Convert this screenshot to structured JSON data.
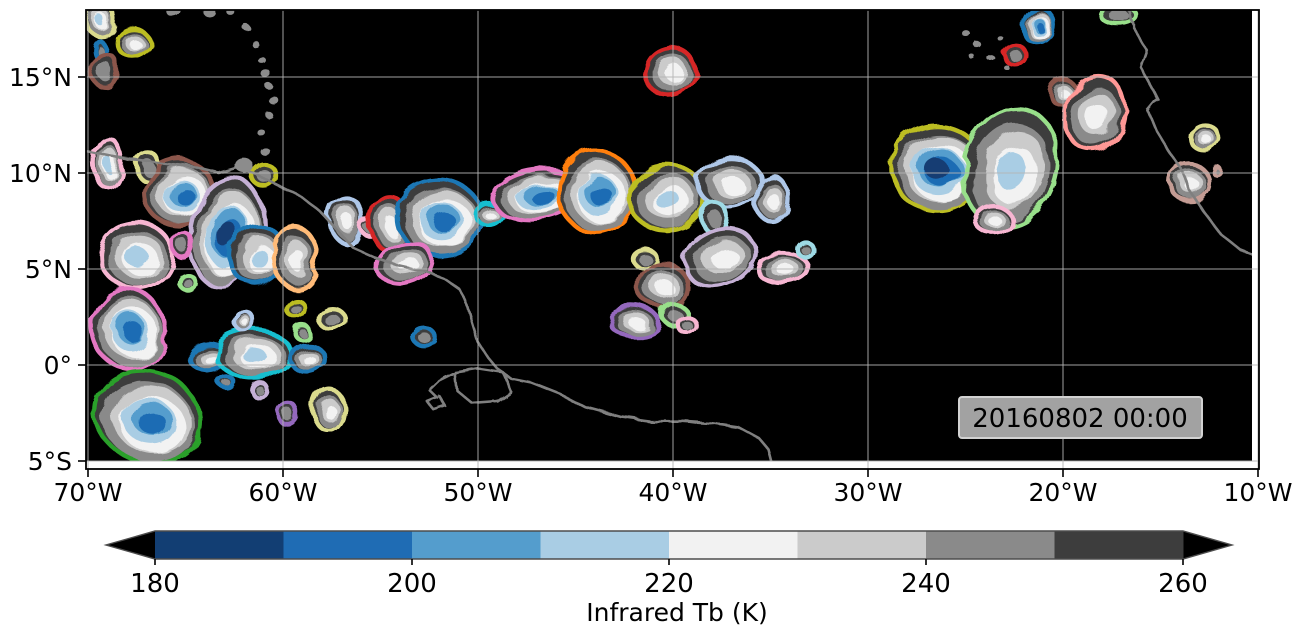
{
  "figure": {
    "timestamp": "20160802 00:00",
    "plot_bg_color": "#000000",
    "gridline_color": "#b4b4b4",
    "coastline_color": "#7f7f7f",
    "frame_color": "#000000",
    "x_axis": {
      "tick_labels": [
        "70°W",
        "60°W",
        "50°W",
        "40°W",
        "30°W",
        "20°W",
        "10°W"
      ],
      "tick_lons": [
        -70,
        -60,
        -50,
        -40,
        -30,
        -20,
        -10
      ]
    },
    "y_axis": {
      "tick_labels": [
        "15°N",
        "10°N",
        "5°N",
        "0°",
        "5°S"
      ],
      "tick_lats": [
        15,
        10,
        5,
        0,
        -5
      ]
    },
    "xlim": [
      -70.1,
      -9.9
    ],
    "ylim": [
      -5.2,
      18.5
    ]
  },
  "colorbar": {
    "label": "Infrared Tb (K)",
    "tick_labels": [
      "180",
      "200",
      "220",
      "240",
      "260"
    ],
    "tick_values": [
      180,
      200,
      220,
      240,
      260
    ],
    "levels": [
      180,
      190,
      200,
      210,
      220,
      230,
      240,
      250,
      260
    ],
    "segment_colors": [
      "#123e73",
      "#1f6cb4",
      "#549dcd",
      "#a9cde4",
      "#f2f2f2",
      "#cbcbcb",
      "#8a8a8a",
      "#3d3d3d"
    ],
    "extend_arrow_color": "#000000",
    "border_color": "#4d4d4d"
  },
  "chart_data": {
    "type": "filled-contour-map",
    "title": "",
    "field": "Infrared brightness temperature (K); black background = warm (>260 K), blues = coldest cloud tops (<220 K)",
    "timestamp": "20160802 00:00",
    "lon_range": [
      -70,
      -10
    ],
    "lat_range": [
      -5,
      18.5
    ],
    "grid": true,
    "fill_levels_desc": "rings from cluster edge inward: 250-260K dark gray, 240-250 gray, 230-240 light gray, 220-230 white, 210-220 pale blue, 200-210 mid blue, 190-200 blue, 180-190 navy",
    "fill_ring_colors": [
      "#3d3d3d",
      "#8a8a8a",
      "#cbcbcb",
      "#f2f2f2",
      "#a9cde4",
      "#549dcd",
      "#1f6cb4",
      "#123e73"
    ],
    "tier_ring_counts": {
      "1": 2,
      "2": 4,
      "3": 5,
      "4": 7,
      "5": 8
    },
    "clusters_fields": [
      "lon",
      "lat",
      "rx_deg",
      "ry_deg",
      "rot_deg",
      "tier_coldness",
      "outline_color"
    ],
    "clusters": [
      [
        -69.3,
        17.9,
        0.72,
        0.83,
        0,
        3,
        "#dbdb8d"
      ],
      [
        -67.7,
        16.8,
        0.82,
        0.73,
        0,
        2,
        "#bcbd22"
      ],
      [
        -69.4,
        16.4,
        0.26,
        0.47,
        0,
        1,
        "#1f77b4"
      ],
      [
        -69.1,
        15.3,
        0.67,
        0.89,
        0,
        1,
        "#8c564b"
      ],
      [
        -68.9,
        10.4,
        0.72,
        1.3,
        0,
        3,
        "#f7b6d2"
      ],
      [
        -66.9,
        10.3,
        0.62,
        0.73,
        0,
        1,
        "#dbdb8d"
      ],
      [
        -65.2,
        8.9,
        1.74,
        1.67,
        -20,
        4,
        "#8c564b"
      ],
      [
        -62.8,
        6.7,
        1.85,
        2.86,
        10,
        5,
        "#c5b0d5"
      ],
      [
        -60.9,
        9.8,
        0.6,
        0.6,
        0,
        1,
        "#bcbd22"
      ],
      [
        -67.4,
        5.6,
        1.85,
        1.7,
        0,
        3,
        "#f7b6d2"
      ],
      [
        -65.1,
        6.2,
        0.5,
        0.67,
        0,
        1,
        "#e377c2"
      ],
      [
        -61.2,
        5.6,
        1.43,
        1.56,
        0,
        3,
        "#1f77b4"
      ],
      [
        -59.3,
        5.5,
        1.1,
        1.56,
        0,
        2,
        "#ffbb78"
      ],
      [
        -64.9,
        4.3,
        0.4,
        0.4,
        0,
        1,
        "#98df8a"
      ],
      [
        -67.8,
        1.8,
        1.85,
        2.1,
        -15,
        4,
        "#e377c2"
      ],
      [
        -66.8,
        -2.9,
        2.77,
        2.34,
        20,
        4,
        "#2ca02c"
      ],
      [
        -63.8,
        0.4,
        0.97,
        0.73,
        0,
        2,
        "#1f77b4"
      ],
      [
        -61.4,
        0.5,
        1.95,
        1.2,
        0,
        3,
        "#17becf"
      ],
      [
        -58.7,
        0.3,
        0.87,
        0.73,
        0,
        2,
        "#1f77b4"
      ],
      [
        -62.9,
        -0.9,
        0.36,
        0.31,
        0,
        1,
        "#1f77b4"
      ],
      [
        -61.2,
        -1.3,
        0.4,
        0.4,
        0,
        1,
        "#c5b0d5"
      ],
      [
        -59.7,
        -2.6,
        0.51,
        0.57,
        0,
        1,
        "#9467bd"
      ],
      [
        -61.9,
        2.2,
        0.46,
        0.52,
        0,
        2,
        "#aec7e8"
      ],
      [
        -59.4,
        3.0,
        0.46,
        0.46,
        0,
        1,
        "#bcbd22"
      ],
      [
        -59.0,
        1.7,
        0.4,
        0.36,
        0,
        1,
        "#98df8a"
      ],
      [
        -57.4,
        2.3,
        0.67,
        0.57,
        0,
        1,
        "#dbdb8d"
      ],
      [
        -57.6,
        -2.4,
        0.77,
        1.1,
        0,
        2,
        "#dbdb8d"
      ],
      [
        -56.7,
        7.5,
        0.87,
        1.15,
        0,
        2,
        "#aec7e8"
      ],
      [
        -55.6,
        7.1,
        0.36,
        0.36,
        0,
        1,
        "#f7b6d2"
      ],
      [
        -54.5,
        7.3,
        0.97,
        1.4,
        0,
        2,
        "#d62728"
      ],
      [
        -51.8,
        7.5,
        2.2,
        1.93,
        0,
        4,
        "#1f77b4"
      ],
      [
        -53.7,
        5.3,
        1.43,
        1.04,
        -15,
        2,
        "#e377c2"
      ],
      [
        -49.4,
        7.8,
        0.67,
        0.57,
        0,
        2,
        "#17becf"
      ],
      [
        -46.8,
        8.8,
        2.3,
        1.25,
        -8,
        4,
        "#e377c2"
      ],
      [
        -43.8,
        8.9,
        1.95,
        2.14,
        0,
        4,
        "#ff7f0e"
      ],
      [
        -40.2,
        8.6,
        1.95,
        1.7,
        0,
        3,
        "#bcbd22"
      ],
      [
        -41.5,
        5.6,
        0.62,
        0.47,
        0,
        1,
        "#dbdb8d"
      ],
      [
        -40.5,
        4.1,
        1.23,
        1.2,
        0,
        2,
        "#8c564b"
      ],
      [
        -39.9,
        2.6,
        0.62,
        0.57,
        0,
        1,
        "#98df8a"
      ],
      [
        -39.3,
        2.1,
        0.46,
        0.42,
        0,
        1,
        "#f7b6d2"
      ],
      [
        -41.9,
        2.2,
        1.28,
        0.68,
        0,
        2,
        "#9467bd"
      ],
      [
        -40.1,
        15.3,
        1.28,
        1.25,
        -30,
        2,
        "#d62728"
      ],
      [
        -52.8,
        1.5,
        0.56,
        0.47,
        0,
        1,
        "#1f77b4"
      ],
      [
        -37.0,
        9.4,
        1.6,
        1.35,
        0,
        2,
        "#aec7e8"
      ],
      [
        -37.8,
        7.6,
        0.67,
        0.78,
        0,
        1,
        "#9edae5"
      ],
      [
        -34.9,
        8.6,
        0.82,
        1.2,
        0,
        2,
        "#aec7e8"
      ],
      [
        -37.5,
        5.6,
        1.85,
        1.35,
        -25,
        2,
        "#c5b0d5"
      ],
      [
        -34.3,
        5.0,
        1.33,
        0.78,
        0,
        2,
        "#f7b6d2"
      ],
      [
        -33.2,
        6.0,
        0.4,
        0.4,
        0,
        1,
        "#9edae5"
      ],
      [
        -26.3,
        10.1,
        2.36,
        2.19,
        0,
        5,
        "#bcbd22"
      ],
      [
        -22.6,
        10.1,
        2.36,
        3.12,
        15,
        3,
        "#98df8a"
      ],
      [
        -23.5,
        7.5,
        0.92,
        0.73,
        0,
        2,
        "#f7b6d2"
      ],
      [
        -20.0,
        14.2,
        0.67,
        0.67,
        0,
        2,
        "#8c564b"
      ],
      [
        -18.3,
        13.0,
        1.54,
        1.98,
        10,
        2,
        "#ff9896"
      ],
      [
        -12.8,
        11.9,
        0.72,
        0.68,
        0,
        2,
        "#dbdb8d"
      ],
      [
        -13.5,
        9.5,
        1.02,
        0.94,
        0,
        2,
        "#c49c94"
      ],
      [
        -12.1,
        10.1,
        0.2,
        0.2,
        0,
        1,
        "#c49c94"
      ],
      [
        -21.3,
        17.7,
        0.82,
        0.94,
        0,
        4,
        "#1f77b4"
      ],
      [
        -22.4,
        16.1,
        0.56,
        0.52,
        0,
        1,
        "#d62728"
      ],
      [
        -17.1,
        18.2,
        0.92,
        0.47,
        0,
        1,
        "#98df8a"
      ]
    ],
    "coastlines": [
      [
        [
          -70.0,
          11.1
        ],
        [
          -68.5,
          10.8
        ],
        [
          -66.7,
          10.6
        ],
        [
          -64.9,
          10.4
        ],
        [
          -63.3,
          10.0
        ],
        [
          -62.3,
          10.3
        ],
        [
          -61.3,
          9.9
        ],
        [
          -60.3,
          9.4
        ],
        [
          -59.1,
          8.8
        ],
        [
          -58.1,
          8.0
        ],
        [
          -57.2,
          7.0
        ],
        [
          -56.4,
          6.1
        ],
        [
          -55.3,
          5.6
        ],
        [
          -54.1,
          5.2
        ],
        [
          -52.8,
          4.9
        ],
        [
          -51.7,
          4.5
        ],
        [
          -51.0,
          4.0
        ],
        [
          -50.6,
          3.3
        ],
        [
          -50.3,
          2.2
        ],
        [
          -50.0,
          1.2
        ],
        [
          -49.5,
          0.4
        ],
        [
          -49.0,
          -0.2
        ],
        [
          -48.3,
          -0.7
        ],
        [
          -47.3,
          -0.9
        ],
        [
          -45.8,
          -1.5
        ],
        [
          -44.5,
          -2.2
        ],
        [
          -42.7,
          -2.7
        ],
        [
          -41.2,
          -2.9
        ],
        [
          -39.6,
          -2.9
        ],
        [
          -38.1,
          -3.0
        ],
        [
          -36.7,
          -3.2
        ],
        [
          -35.6,
          -3.8
        ],
        [
          -35.1,
          -4.4
        ],
        [
          -34.9,
          -5.2
        ]
      ],
      [
        [
          -51.2,
          -0.4
        ],
        [
          -50.0,
          -0.2
        ],
        [
          -48.7,
          -0.4
        ],
        [
          -48.3,
          -1.4
        ],
        [
          -49.0,
          -1.9
        ],
        [
          -50.3,
          -2.0
        ],
        [
          -51.1,
          -1.3
        ],
        [
          -51.2,
          -0.4
        ]
      ],
      [
        [
          -51.2,
          -0.4
        ],
        [
          -52.0,
          -0.8
        ],
        [
          -52.5,
          -1.3
        ],
        [
          -52.1,
          -1.7
        ],
        [
          -52.6,
          -1.9
        ],
        [
          -52.3,
          -2.3
        ],
        [
          -51.7,
          -2.1
        ],
        [
          -52.0,
          -1.6
        ]
      ],
      [
        [
          -16.6,
          18.6
        ],
        [
          -16.4,
          17.6
        ],
        [
          -15.7,
          16.4
        ],
        [
          -16.0,
          15.5
        ],
        [
          -15.4,
          14.4
        ],
        [
          -15.1,
          13.8
        ],
        [
          -15.6,
          13.2
        ],
        [
          -15.2,
          12.2
        ],
        [
          -14.6,
          11.2
        ],
        [
          -14.0,
          10.3
        ],
        [
          -13.5,
          9.1
        ],
        [
          -12.8,
          8.0
        ],
        [
          -11.9,
          6.8
        ],
        [
          -10.9,
          6.0
        ],
        [
          -9.9,
          5.6
        ]
      ]
    ],
    "islands": [
      [
        -62.7,
        18.4,
        4
      ],
      [
        -61.9,
        17.6,
        4
      ],
      [
        -61.4,
        16.7,
        4
      ],
      [
        -61.1,
        15.9,
        4
      ],
      [
        -60.9,
        15.2,
        5
      ],
      [
        -60.7,
        14.5,
        4
      ],
      [
        -60.5,
        13.8,
        5
      ],
      [
        -60.7,
        13.0,
        4
      ],
      [
        -61.1,
        12.1,
        4
      ],
      [
        -62.0,
        10.4,
        9
      ],
      [
        -60.9,
        11.1,
        5
      ],
      [
        -65.7,
        18.5,
        7
      ],
      [
        -63.8,
        18.4,
        6
      ],
      [
        -25.0,
        17.3,
        4
      ],
      [
        -24.4,
        16.7,
        4
      ],
      [
        -23.7,
        16.0,
        4
      ],
      [
        -23.2,
        17.0,
        3
      ],
      [
        -22.9,
        15.5,
        3
      ],
      [
        -24.7,
        16.1,
        3
      ]
    ]
  }
}
